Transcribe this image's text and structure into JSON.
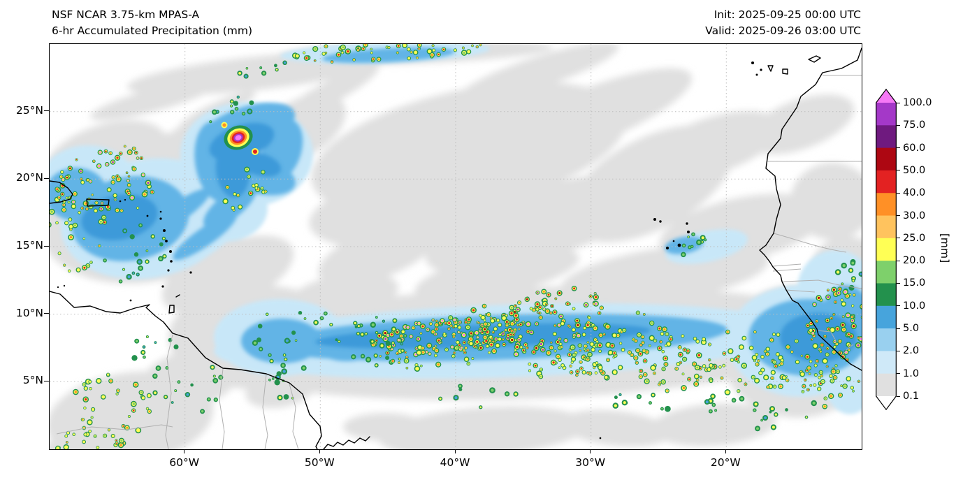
{
  "header": {
    "model_line": "NSF NCAR 3.75-km MPAS-A",
    "product_line": "6-hr Accumulated Precipitation (mm)",
    "init": "Init: 2025-09-25 00:00 UTC",
    "valid": "Valid: 2025-09-26 03:00 UTC"
  },
  "map": {
    "x_ticks": [
      {
        "label": "60°W",
        "deg": 60
      },
      {
        "label": "50°W",
        "deg": 50
      },
      {
        "label": "40°W",
        "deg": 40
      },
      {
        "label": "30°W",
        "deg": 30
      },
      {
        "label": "20°W",
        "deg": 20
      }
    ],
    "y_ticks": [
      {
        "label": "25°N",
        "deg": 25
      },
      {
        "label": "20°N",
        "deg": 20
      },
      {
        "label": "15°N",
        "deg": 15
      },
      {
        "label": "10°N",
        "deg": 10
      },
      {
        "label": "5°N",
        "deg": 5
      }
    ]
  },
  "colorbar": {
    "unit": "[mm]",
    "boundaries_top_to_bottom": [
      "100.0",
      "75.0",
      "60.0",
      "50.0",
      "40.0",
      "30.0",
      "25.0",
      "20.0",
      "15.0",
      "10.0",
      "5.0",
      "2.0",
      "1.0",
      "0.1"
    ],
    "segment_colors_top_to_bottom": [
      "#a438c8",
      "#6f1a7f",
      "#ad0712",
      "#e32222",
      "#ff9026",
      "#ffc35e",
      "#ffff55",
      "#7ed06b",
      "#23914d",
      "#47a4dc",
      "#99d0ef",
      "#cfe9f8",
      "#e0e0e0"
    ],
    "over_color": "#f678f6",
    "under_color": "#ffffff"
  },
  "precip_cells": {
    "seed": 7,
    "clusters": [
      [
        575,
        418,
        115,
        26,
        -6,
        150,
        "high"
      ],
      [
        700,
        398,
        95,
        42,
        -18,
        120,
        "high"
      ],
      [
        800,
        432,
        80,
        45,
        -20,
        80,
        "med"
      ],
      [
        893,
        452,
        70,
        45,
        0,
        55,
        "med"
      ],
      [
        990,
        452,
        80,
        48,
        0,
        50,
        "med"
      ],
      [
        1062,
        462,
        60,
        38,
        0,
        35,
        "med"
      ],
      [
        1126,
        400,
        45,
        50,
        8,
        75,
        "high"
      ],
      [
        1112,
        482,
        50,
        38,
        0,
        30,
        "med"
      ],
      [
        470,
        425,
        60,
        35,
        0,
        30,
        "low"
      ],
      [
        352,
        420,
        70,
        45,
        0,
        22,
        "low"
      ],
      [
        82,
        200,
        75,
        55,
        -15,
        75,
        "high"
      ],
      [
        38,
        268,
        45,
        60,
        0,
        30,
        "med"
      ],
      [
        120,
        300,
        60,
        40,
        -20,
        20,
        "low"
      ],
      [
        480,
        10,
        150,
        14,
        -3,
        60,
        "med"
      ],
      [
        300,
        38,
        40,
        10,
        -15,
        8,
        "low"
      ],
      [
        92,
        520,
        70,
        48,
        0,
        35,
        "med"
      ],
      [
        60,
        572,
        60,
        28,
        0,
        25,
        "med"
      ],
      [
        190,
        490,
        60,
        42,
        0,
        16,
        "low"
      ],
      [
        330,
        490,
        30,
        24,
        0,
        10,
        "low"
      ],
      [
        910,
        287,
        35,
        15,
        -10,
        10,
        "low"
      ],
      [
        1010,
        520,
        90,
        32,
        0,
        20,
        "low"
      ],
      [
        850,
        520,
        60,
        22,
        0,
        10,
        "low"
      ],
      [
        620,
        505,
        80,
        18,
        0,
        8,
        "low"
      ],
      [
        282,
        207,
        45,
        26,
        -30,
        18,
        "med"
      ],
      [
        256,
        96,
        50,
        16,
        -25,
        12,
        "low"
      ],
      [
        1148,
        332,
        22,
        28,
        0,
        12,
        "low"
      ],
      [
        152,
        442,
        40,
        28,
        0,
        10,
        "low"
      ],
      [
        540,
        448,
        90,
        18,
        -4,
        25,
        "med"
      ],
      [
        745,
        452,
        70,
        25,
        -10,
        30,
        "med"
      ],
      [
        640,
        388,
        90,
        16,
        -6,
        25,
        "med"
      ]
    ]
  }
}
